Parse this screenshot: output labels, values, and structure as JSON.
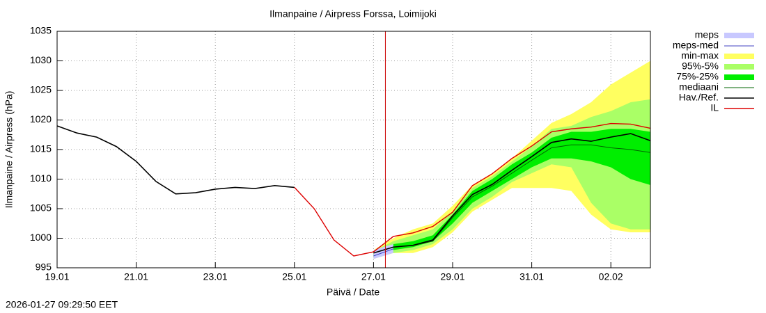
{
  "chart_data": {
    "type": "line",
    "title": "Ilmanpaine / Airpress Forssa, Loimijoki",
    "xlabel": "Päivä / Date",
    "ylabel": "Ilmanpaine / Airpress (hPa)",
    "timestamp": "2026-01-27 09:29:50 EET",
    "x": [
      0,
      0.5,
      1,
      1.5,
      2,
      2.5,
      3,
      3.5,
      4,
      4.5,
      5,
      5.5,
      6,
      6.5,
      7,
      7.5,
      8,
      8.5,
      9,
      9.5,
      10,
      10.5,
      11,
      11.5,
      12,
      12.5,
      13,
      13.5,
      14,
      14.5,
      15
    ],
    "xlim": [
      0,
      15
    ],
    "xticks": [
      {
        "value": 0,
        "label": "19.01"
      },
      {
        "value": 2,
        "label": "21.01"
      },
      {
        "value": 4,
        "label": "23.01"
      },
      {
        "value": 6,
        "label": "25.01"
      },
      {
        "value": 8,
        "label": "27.01"
      },
      {
        "value": 10,
        "label": "29.01"
      },
      {
        "value": 12,
        "label": "31.01"
      },
      {
        "value": 14,
        "label": "02.02"
      }
    ],
    "ylim": [
      995,
      1035
    ],
    "yticks": [
      995,
      1000,
      1005,
      1010,
      1015,
      1020,
      1025,
      1030,
      1035
    ],
    "grid": true,
    "legend": "right",
    "now_line": {
      "x": 8.3,
      "color": "#cc0000"
    },
    "series": [
      {
        "name": "meps",
        "kind": "band",
        "color": "#c8c8ff",
        "values": [
          null,
          null,
          null,
          null,
          null,
          null,
          null,
          null,
          null,
          null,
          null,
          null,
          null,
          null,
          null,
          null,
          [
            996.5,
            998
          ],
          [
            997.5,
            999
          ],
          null,
          null,
          null,
          null,
          null,
          null,
          null,
          null,
          null,
          null,
          null,
          null,
          null
        ]
      },
      {
        "name": "meps-med",
        "kind": "line",
        "color": "#4040c0",
        "width": 1,
        "values": [
          null,
          null,
          null,
          null,
          null,
          null,
          null,
          null,
          null,
          null,
          null,
          null,
          null,
          null,
          null,
          null,
          997,
          998.2,
          null,
          null,
          null,
          null,
          null,
          null,
          null,
          null,
          null,
          null,
          null,
          null,
          null
        ]
      },
      {
        "name": "min-max",
        "kind": "band",
        "color": "#ffff60",
        "values": [
          null,
          null,
          null,
          null,
          null,
          null,
          null,
          null,
          null,
          null,
          null,
          null,
          null,
          null,
          null,
          null,
          [
            996.5,
            998
          ],
          [
            997.5,
            1000
          ],
          [
            997.5,
            1001.5
          ],
          [
            998.5,
            1002.5
          ],
          [
            1001,
            1005.5
          ],
          [
            1004.5,
            1009
          ],
          [
            1006.5,
            1011
          ],
          [
            1008.5,
            1013.5
          ],
          [
            1008.5,
            1016.5
          ],
          [
            1008.5,
            1019.5
          ],
          [
            1008,
            1021
          ],
          [
            1004,
            1023
          ],
          [
            1001.5,
            1026
          ],
          [
            1001,
            1028
          ],
          [
            1001,
            1030
          ]
        ]
      },
      {
        "name": "95%-5%",
        "kind": "band",
        "color": "#aaff66",
        "values": [
          null,
          null,
          null,
          null,
          null,
          null,
          null,
          null,
          null,
          null,
          null,
          null,
          null,
          null,
          null,
          null,
          [
            996.8,
            997.8
          ],
          [
            997.5,
            999.5
          ],
          [
            998,
            1000.5
          ],
          [
            999,
            1001.5
          ],
          [
            1001.5,
            1004.5
          ],
          [
            1005,
            1008.5
          ],
          [
            1007,
            1010.5
          ],
          [
            1009.5,
            1013
          ],
          [
            1011,
            1015.5
          ],
          [
            1012.5,
            1018.5
          ],
          [
            1012,
            1019
          ],
          [
            1006,
            1020.5
          ],
          [
            1002.5,
            1021.5
          ],
          [
            1001.5,
            1023
          ],
          [
            1001.5,
            1023.5
          ]
        ]
      },
      {
        "name": "75%-25%",
        "kind": "band",
        "color": "#00ee00",
        "values": [
          null,
          null,
          null,
          null,
          null,
          null,
          null,
          null,
          null,
          null,
          null,
          null,
          null,
          null,
          null,
          null,
          [
            997,
            997.8
          ],
          [
            998,
            999
          ],
          [
            998.5,
            999.5
          ],
          [
            999.5,
            1000.5
          ],
          [
            1002.5,
            1004
          ],
          [
            1006,
            1008
          ],
          [
            1008,
            1010
          ],
          [
            1010,
            1012.5
          ],
          [
            1012,
            1014.5
          ],
          [
            1013.5,
            1017
          ],
          [
            1013.5,
            1018
          ],
          [
            1013,
            1018
          ],
          [
            1012,
            1018.5
          ],
          [
            1010,
            1018.5
          ],
          [
            1009,
            1018
          ]
        ]
      },
      {
        "name": "mediaani",
        "kind": "line",
        "color": "#006400",
        "width": 1,
        "values": [
          null,
          null,
          null,
          null,
          null,
          null,
          null,
          null,
          null,
          null,
          null,
          null,
          null,
          null,
          null,
          null,
          997.5,
          998.5,
          998.8,
          999.5,
          1003.5,
          1007,
          1008.8,
          1011,
          1013.2,
          1015.3,
          1015.8,
          1015.8,
          1015.3,
          1015,
          1014.5
        ]
      },
      {
        "name": "Hav./Ref.",
        "kind": "line",
        "color": "#000000",
        "width": 1.6,
        "values": [
          1019,
          1017.8,
          1017.1,
          1015.5,
          1013,
          1009.6,
          1007.5,
          1007.7,
          1008.3,
          1008.6,
          1008.4,
          1008.9,
          1008.6,
          null,
          null,
          null,
          997.5,
          998.5,
          998.8,
          999.7,
          1003.8,
          1007.4,
          1009.1,
          1011.5,
          1013.8,
          1016.2,
          1016.8,
          1016.4,
          1017.1,
          1017.7,
          1016.5
        ]
      },
      {
        "name": "IL",
        "kind": "line",
        "color": "#dd0000",
        "width": 1.4,
        "values": [
          null,
          null,
          null,
          null,
          null,
          null,
          null,
          null,
          null,
          null,
          null,
          null,
          1008.6,
          1005,
          999.7,
          997,
          997.7,
          1000.3,
          1000.9,
          1002,
          1004.4,
          1008.9,
          1010.9,
          1013.5,
          1015.6,
          1018,
          1018.5,
          1018.8,
          1019.4,
          1019.3,
          1018.6
        ]
      }
    ]
  }
}
